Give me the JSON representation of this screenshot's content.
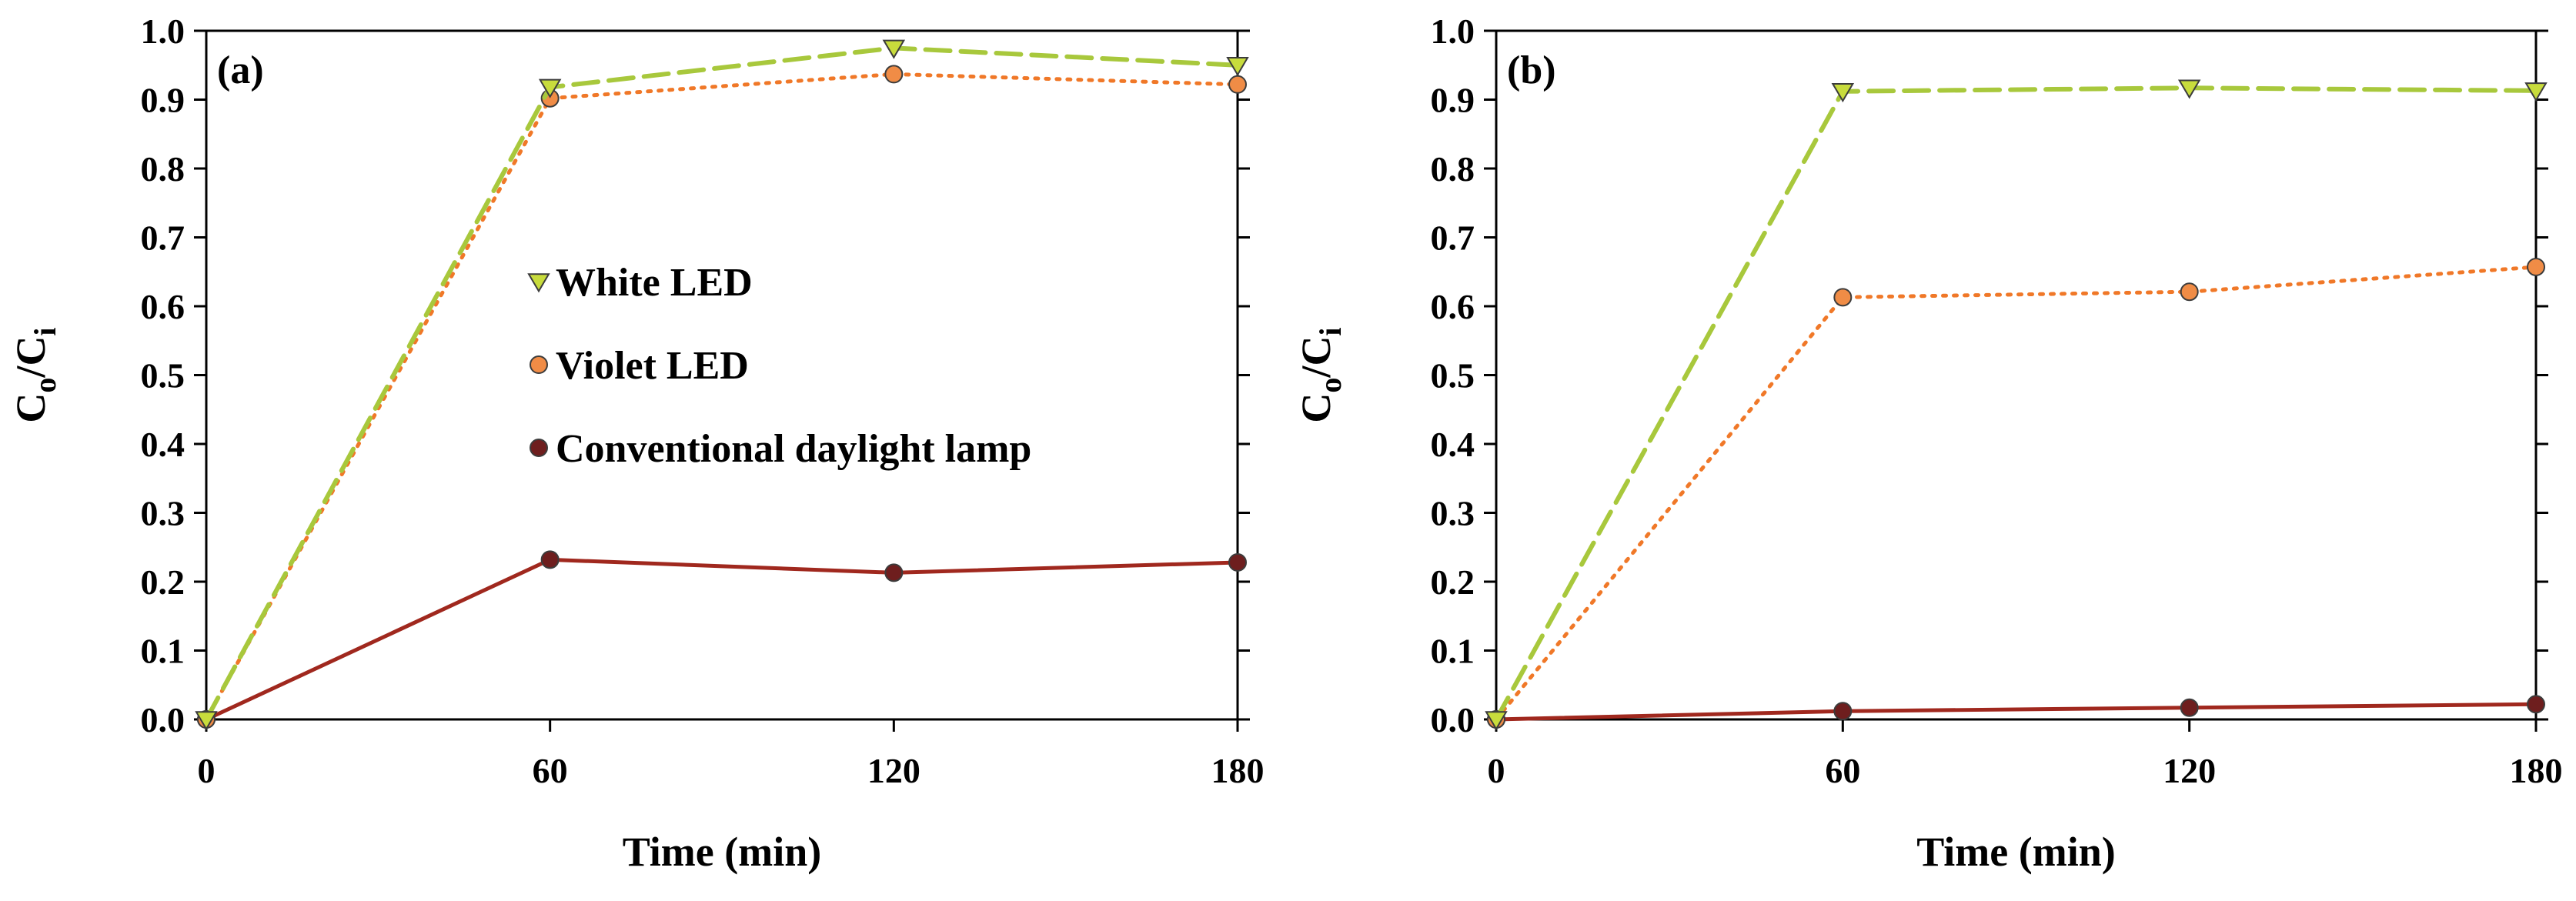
{
  "colors": {
    "white_led_line": "#a8c83c",
    "white_led_marker": "#c8dc3c",
    "violet_led_line": "#f07828",
    "violet_led_marker": "#f08c46",
    "daylight_line": "#a0281e",
    "daylight_marker": "#6e1e1e",
    "axis": "#000000"
  },
  "chart_data": [
    {
      "type": "line",
      "panel_label": "(a)",
      "xlabel": "Time (min)",
      "ylabel_main": "C",
      "ylabel_sub1": "o",
      "ylabel_sep": "/C",
      "ylabel_sub2": "i",
      "x": [
        0,
        60,
        120,
        180
      ],
      "x_ticks": [
        "0",
        "60",
        "120",
        "180"
      ],
      "xlim": [
        0,
        180
      ],
      "y_ticks": [
        "0.0",
        "0.1",
        "0.2",
        "0.3",
        "0.4",
        "0.5",
        "0.6",
        "0.7",
        "0.8",
        "0.9",
        "1.0"
      ],
      "ylim": [
        0,
        1.0
      ],
      "grid": false,
      "legend_position": "center-left",
      "series": [
        {
          "name": "White LED",
          "values": [
            0.0,
            0.918,
            0.975,
            0.95
          ]
        },
        {
          "name": "Violet LED",
          "values": [
            0.0,
            0.902,
            0.937,
            0.922
          ]
        },
        {
          "name": "Conventional daylight lamp",
          "values": [
            0.0,
            0.232,
            0.213,
            0.228
          ]
        }
      ]
    },
    {
      "type": "line",
      "panel_label": "(b)",
      "xlabel": "Time (min)",
      "ylabel_main": "C",
      "ylabel_sub1": "o",
      "ylabel_sep": "/C",
      "ylabel_sub2": "i",
      "x": [
        0,
        60,
        120,
        180
      ],
      "x_ticks": [
        "0",
        "60",
        "120",
        "180"
      ],
      "xlim": [
        0,
        180
      ],
      "y_ticks": [
        "0.0",
        "0.1",
        "0.2",
        "0.3",
        "0.4",
        "0.5",
        "0.6",
        "0.7",
        "0.8",
        "0.9",
        "1.0"
      ],
      "ylim": [
        0,
        1.0
      ],
      "grid": false,
      "series": [
        {
          "name": "White LED",
          "values": [
            0.0,
            0.912,
            0.917,
            0.913
          ]
        },
        {
          "name": "Violet LED",
          "values": [
            0.0,
            0.613,
            0.621,
            0.657
          ]
        },
        {
          "name": "Conventional daylight lamp",
          "values": [
            0.0,
            0.012,
            0.017,
            0.022
          ]
        }
      ]
    }
  ]
}
